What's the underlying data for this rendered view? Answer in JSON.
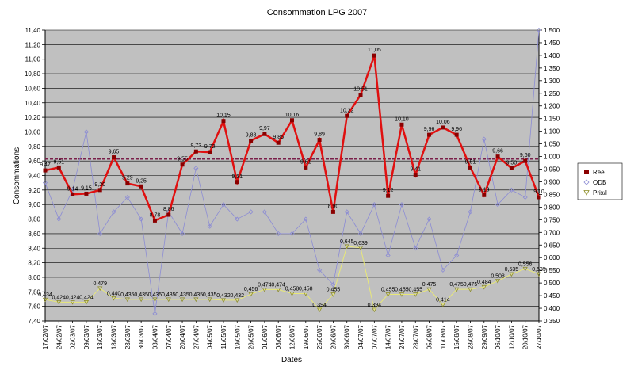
{
  "chart_data": {
    "type": "line",
    "title": "Consommation LPG 2007",
    "xlabel": "Dates",
    "ylabel": "Consommations",
    "ylim": [
      7.4,
      11.4
    ],
    "yticks": [
      "7,40",
      "7,60",
      "7,80",
      "8,00",
      "8,20",
      "8,40",
      "8,60",
      "8,80",
      "9,00",
      "9,20",
      "9,40",
      "9,60",
      "9,80",
      "10,00",
      "10,20",
      "10,40",
      "10,60",
      "10,80",
      "11,00",
      "11,20",
      "11,40"
    ],
    "y2lim": [
      0.35,
      1.5
    ],
    "y2ticks": [
      "0,350",
      "0,400",
      "0,450",
      "0,500",
      "0,550",
      "0,600",
      "0,650",
      "0,700",
      "0,750",
      "0,800",
      "0,850",
      "0,900",
      "0,950",
      "1,000",
      "1,050",
      "1,100",
      "1,150",
      "1,200",
      "1,250",
      "1,300",
      "1,350",
      "1,400",
      "1,450",
      "1,500"
    ],
    "categories": [
      "17/02/07",
      "24/02/07",
      "02/03/07",
      "09/03/07",
      "13/03/07",
      "18/03/07",
      "23/03/07",
      "30/03/07",
      "03/04/07",
      "07/04/07",
      "20/04/07",
      "27/04/07",
      "04/05/07",
      "11/05/07",
      "19/05/07",
      "26/05/07",
      "01/06/07",
      "08/06/07",
      "12/06/07",
      "19/06/07",
      "25/06/07",
      "29/06/07",
      "30/06/07",
      "04/07/07",
      "07/07/07",
      "14/07/07",
      "24/07/07",
      "28/07/07",
      "05/08/07",
      "11/08/07",
      "15/08/07",
      "28/08/07",
      "29/09/07",
      "06/10/07",
      "12/10/07",
      "20/10/07",
      "27/10/07"
    ],
    "grid": true,
    "legend_position": "right",
    "reference_level": 9.63,
    "series": [
      {
        "name": "Réel",
        "color": "#e01010",
        "marker": "square",
        "values": [
          9.47,
          9.51,
          9.14,
          9.15,
          9.2,
          9.65,
          9.29,
          9.25,
          8.78,
          8.86,
          9.55,
          9.73,
          9.72,
          10.15,
          9.31,
          9.88,
          9.97,
          9.85,
          10.16,
          9.51,
          9.89,
          8.9,
          10.22,
          10.51,
          11.05,
          9.12,
          10.1,
          9.41,
          9.96,
          10.06,
          9.96,
          9.51,
          9.13,
          9.66,
          9.5,
          9.6,
          9.1
        ],
        "labels": [
          "9,47",
          "9,51",
          "9,14",
          "9,15",
          "9,20",
          "9,65",
          "9,29",
          "9,25",
          "8,78",
          "8,86",
          "9,55",
          "9,73",
          "9,72",
          "10,15",
          "9,31",
          "9,88",
          "9,97",
          "9,85",
          "10,16",
          "9,51",
          "9,89",
          "8,90",
          "10,22",
          "10,51",
          "11,05",
          "9,12",
          "10,10",
          "9,41",
          "9,96",
          "10,06",
          "9,96",
          "9,51",
          "9,13",
          "9,66",
          "9,50",
          "9,60",
          "9,10"
        ]
      },
      {
        "name": "ODB",
        "color": "#8c8cd4",
        "marker": "diamond",
        "values": [
          9.3,
          8.8,
          9.2,
          10.0,
          8.6,
          8.9,
          9.1,
          8.8,
          7.5,
          8.9,
          8.6,
          9.5,
          8.7,
          9.0,
          8.8,
          8.9,
          8.9,
          8.6,
          8.6,
          8.8,
          8.1,
          7.9,
          8.9,
          8.6,
          9.0,
          8.3,
          9.0,
          8.4,
          8.8,
          8.1,
          8.3,
          8.9,
          9.9,
          9.0,
          9.2,
          9.1,
          11.4
        ]
      },
      {
        "name": "Prix/l",
        "color": "#e8e878",
        "marker": "triangle-down",
        "values": [
          0.434,
          0.424,
          0.424,
          0.424,
          0.479,
          0.44,
          0.435,
          0.435,
          0.435,
          0.435,
          0.435,
          0.435,
          0.435,
          0.432,
          0.432,
          0.456,
          0.474,
          0.474,
          0.458,
          0.458,
          0.394,
          0.455,
          0.645,
          0.639,
          0.394,
          0.455,
          0.455,
          0.455,
          0.475,
          0.414,
          0.475,
          0.475,
          0.484,
          0.508,
          0.535,
          0.556,
          0.535
        ],
        "labels": [
          "0,434",
          "0,424",
          "0,424",
          "0,424",
          "0,479",
          "0,440",
          "0,435",
          "0,435",
          "0,435",
          "0,435",
          "0,435",
          "0,435",
          "0,435",
          "0,432",
          "0,432",
          "0,456",
          "0,474",
          "0,474",
          "0,458",
          "0,458",
          "0,394",
          "0,455",
          "0,645",
          "0,639",
          "0,394",
          "0,455",
          "0,455",
          "0,455",
          "0,475",
          "0,414",
          "0,475",
          "0,475",
          "0,484",
          "0,508",
          "0,535",
          "0,556",
          "0,535"
        ]
      }
    ]
  }
}
